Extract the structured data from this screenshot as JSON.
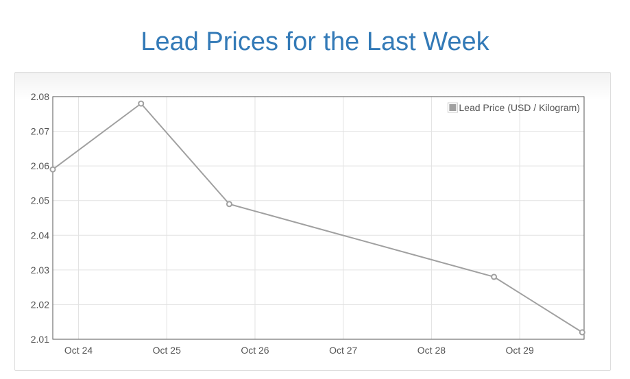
{
  "page": {
    "title": "Lead Prices for the Last Week"
  },
  "chart_data": {
    "type": "line",
    "title": "Lead Prices for the Last Week",
    "xlabel": "",
    "ylabel": "",
    "x_tick_labels": [
      "Oct 24",
      "Oct 25",
      "Oct 26",
      "Oct 27",
      "Oct 28",
      "Oct 29"
    ],
    "y_tick_labels": [
      "2.01",
      "2.02",
      "2.03",
      "2.04",
      "2.05",
      "2.06",
      "2.07",
      "2.08"
    ],
    "ylim": [
      2.01,
      2.08
    ],
    "xlim": [
      "2023-10-23 17:00",
      "2023-10-29 17:30"
    ],
    "grid": true,
    "legend_position": "top-right",
    "series": [
      {
        "name": "Lead Price (USD / Kilogram)",
        "color": "#a0a0a0",
        "points": [
          {
            "x": "2023-10-23 17:00",
            "y": 2.059
          },
          {
            "x": "2023-10-24 17:00",
            "y": 2.078
          },
          {
            "x": "2023-10-25 17:00",
            "y": 2.049
          },
          {
            "x": "2023-10-28 17:00",
            "y": 2.028
          },
          {
            "x": "2023-10-29 17:00",
            "y": 2.012
          }
        ]
      }
    ]
  }
}
